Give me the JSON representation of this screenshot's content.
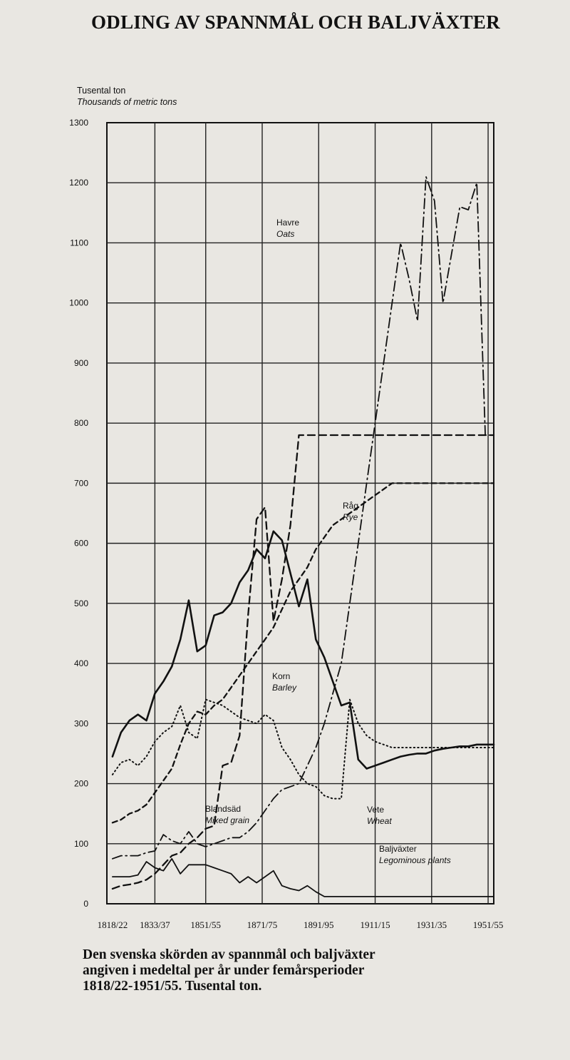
{
  "page": {
    "title": "ODLING AV SPANNMÅL OCH BALJVÄXTER",
    "caption_lines": [
      "Den svenska skörden av spannmål och baljväxter",
      "angiven i medeltal per år under femårsperioder",
      "1818/22-1951/55. Tusental ton."
    ]
  },
  "chart_data": {
    "type": "line",
    "ylabel_line1": "Tusental ton",
    "ylabel_line2": "Thousands of metric tons",
    "ylim": [
      0,
      1300
    ],
    "yticks": [
      0,
      100,
      200,
      300,
      400,
      500,
      600,
      700,
      800,
      900,
      1000,
      1100,
      1200,
      1300
    ],
    "xlim": [
      1818,
      1955
    ],
    "xticks": [
      {
        "x": 1820,
        "label": "1818/22"
      },
      {
        "x": 1835,
        "label": "1833/37"
      },
      {
        "x": 1853,
        "label": "1851/55"
      },
      {
        "x": 1873,
        "label": "1871/75"
      },
      {
        "x": 1893,
        "label": "1891/95"
      },
      {
        "x": 1913,
        "label": "1911/15"
      },
      {
        "x": 1933,
        "label": "1931/35"
      },
      {
        "x": 1953,
        "label": "1951/55"
      }
    ],
    "grid": true,
    "series": [
      {
        "key": "oats",
        "name": "Havre",
        "name_en": "Oats",
        "style": "dashdot",
        "x": [
          1820,
          1823,
          1826,
          1829,
          1832,
          1835,
          1838,
          1841,
          1844,
          1847,
          1850,
          1853,
          1856,
          1859,
          1862,
          1865,
          1868,
          1871,
          1874,
          1877,
          1880,
          1883,
          1886,
          1889,
          1892,
          1895,
          1898,
          1901,
          1904,
          1907,
          1910,
          1913,
          1916,
          1919,
          1922,
          1925,
          1928,
          1931,
          1934,
          1937,
          1940,
          1943,
          1946,
          1949,
          1952,
          1955
        ],
        "values": [
          75,
          80,
          80,
          80,
          85,
          88,
          115,
          105,
          100,
          120,
          100,
          95,
          100,
          105,
          110,
          110,
          120,
          135,
          155,
          175,
          190,
          195,
          200,
          230,
          260,
          300,
          350,
          400,
          500,
          600,
          700,
          800,
          900,
          1000,
          1100,
          1040,
          970,
          1210,
          1170,
          1000,
          1080,
          1160,
          1155,
          1200,
          780,
          780
        ]
      },
      {
        "key": "rye",
        "name": "Råg",
        "name_en": "Rye",
        "style": "solid",
        "x": [
          1820,
          1823,
          1826,
          1829,
          1832,
          1835,
          1838,
          1841,
          1844,
          1847,
          1850,
          1853,
          1856,
          1859,
          1862,
          1865,
          1868,
          1871,
          1874,
          1877,
          1880,
          1883,
          1886,
          1889,
          1892,
          1895,
          1898,
          1901,
          1904,
          1907,
          1910,
          1913,
          1916,
          1919,
          1922,
          1925,
          1928,
          1931,
          1934,
          1937,
          1940,
          1943,
          1946,
          1949,
          1952,
          1955
        ],
        "values": [
          245,
          285,
          305,
          315,
          305,
          350,
          370,
          395,
          440,
          505,
          420,
          430,
          480,
          485,
          500,
          535,
          555,
          590,
          575,
          620,
          605,
          550,
          495,
          540,
          440,
          410,
          370,
          330,
          335,
          240,
          225,
          230,
          235,
          240,
          245,
          248,
          250,
          250,
          255,
          258,
          260,
          262,
          262,
          265,
          265,
          265
        ]
      },
      {
        "key": "barley",
        "name": "Korn",
        "name_en": "Barley",
        "style": "dotted",
        "x": [
          1820,
          1823,
          1826,
          1829,
          1832,
          1835,
          1838,
          1841,
          1844,
          1847,
          1850,
          1853,
          1856,
          1859,
          1862,
          1865,
          1868,
          1871,
          1874,
          1877,
          1880,
          1883,
          1886,
          1889,
          1892,
          1895,
          1898,
          1901,
          1904,
          1907,
          1910,
          1913,
          1916,
          1919,
          1922,
          1925,
          1928,
          1931,
          1934,
          1937,
          1940,
          1943,
          1946,
          1949,
          1952,
          1955
        ],
        "values": [
          215,
          235,
          240,
          230,
          245,
          270,
          285,
          295,
          330,
          285,
          275,
          340,
          335,
          330,
          320,
          310,
          305,
          300,
          315,
          305,
          260,
          240,
          215,
          200,
          195,
          180,
          175,
          175,
          340,
          300,
          280,
          270,
          265,
          260,
          260,
          260,
          260,
          260,
          260,
          260,
          260,
          260,
          260,
          260,
          260,
          260
        ]
      },
      {
        "key": "wheat",
        "name": "Vete",
        "name_en": "Wheat",
        "style": "dashed",
        "x": [
          1820,
          1823,
          1826,
          1829,
          1832,
          1835,
          1838,
          1841,
          1844,
          1847,
          1850,
          1853,
          1856,
          1859,
          1862,
          1865,
          1868,
          1871,
          1874,
          1877,
          1880,
          1883,
          1886,
          1889,
          1892,
          1895,
          1898,
          1901,
          1904,
          1907,
          1910,
          1913,
          1916,
          1919,
          1922,
          1925,
          1928,
          1931,
          1934,
          1937,
          1940,
          1943,
          1946,
          1949,
          1952,
          1955
        ],
        "values": [
          25,
          30,
          32,
          35,
          40,
          50,
          65,
          80,
          85,
          100,
          110,
          125,
          130,
          230,
          235,
          280,
          480,
          640,
          660,
          470,
          540,
          630,
          780,
          780,
          780,
          780,
          780,
          780,
          780,
          780,
          780,
          780,
          780,
          780,
          780,
          780,
          780,
          780,
          780,
          780,
          780,
          780,
          780,
          780,
          780,
          780
        ]
      },
      {
        "key": "mixed",
        "name": "Blandsäd",
        "name_en": "Mixed grain",
        "style": "dashdash",
        "x": [
          1820,
          1823,
          1826,
          1829,
          1832,
          1835,
          1838,
          1841,
          1844,
          1847,
          1850,
          1853,
          1856,
          1859,
          1862,
          1865,
          1868,
          1871,
          1874,
          1877,
          1880,
          1883,
          1886,
          1889,
          1892,
          1895,
          1898,
          1901,
          1904,
          1907,
          1910,
          1913,
          1916,
          1919,
          1922,
          1925,
          1928,
          1931,
          1934,
          1937,
          1940,
          1943,
          1946,
          1949,
          1952,
          1955
        ],
        "values": [
          135,
          140,
          150,
          155,
          165,
          185,
          205,
          225,
          265,
          300,
          320,
          315,
          330,
          340,
          360,
          380,
          400,
          420,
          440,
          460,
          490,
          520,
          540,
          560,
          590,
          610,
          630,
          640,
          650,
          660,
          670,
          680,
          690,
          700,
          700,
          700,
          700,
          700,
          700,
          700,
          700,
          700,
          700,
          700,
          700,
          700
        ]
      },
      {
        "key": "legumes",
        "name": "Baljväxter",
        "name_en": "Legominous plants",
        "style": "solid-thin",
        "x": [
          1820,
          1823,
          1826,
          1829,
          1832,
          1835,
          1838,
          1841,
          1844,
          1847,
          1850,
          1853,
          1856,
          1859,
          1862,
          1865,
          1868,
          1871,
          1874,
          1877,
          1880,
          1883,
          1886,
          1889,
          1892,
          1895,
          1898,
          1901,
          1904,
          1907,
          1910,
          1913,
          1916,
          1919,
          1922,
          1925,
          1928,
          1931,
          1934,
          1937,
          1940,
          1943,
          1946,
          1949,
          1952,
          1955
        ],
        "values": [
          45,
          45,
          45,
          48,
          70,
          60,
          55,
          75,
          50,
          65,
          65,
          65,
          60,
          55,
          50,
          35,
          45,
          35,
          45,
          55,
          30,
          25,
          22,
          30,
          20,
          12,
          12,
          12,
          12,
          12,
          12,
          12,
          12,
          12,
          12,
          12,
          12,
          12,
          12,
          12,
          12,
          12,
          12,
          12,
          12,
          12
        ]
      }
    ],
    "series_labels": [
      {
        "key": "oats",
        "line1": "Havre",
        "line2": "Oats"
      },
      {
        "key": "rye",
        "line1": "Råg",
        "line2": "Rye"
      },
      {
        "key": "barley",
        "line1": "Korn",
        "line2": "Barley"
      },
      {
        "key": "mixed",
        "line1": "Blandsäd",
        "line2": "Mixed grain"
      },
      {
        "key": "wheat",
        "line1": "Vete",
        "line2": "Wheat"
      },
      {
        "key": "legumes",
        "line1": "Baljväxter",
        "line2": "Legominous plants"
      }
    ]
  }
}
